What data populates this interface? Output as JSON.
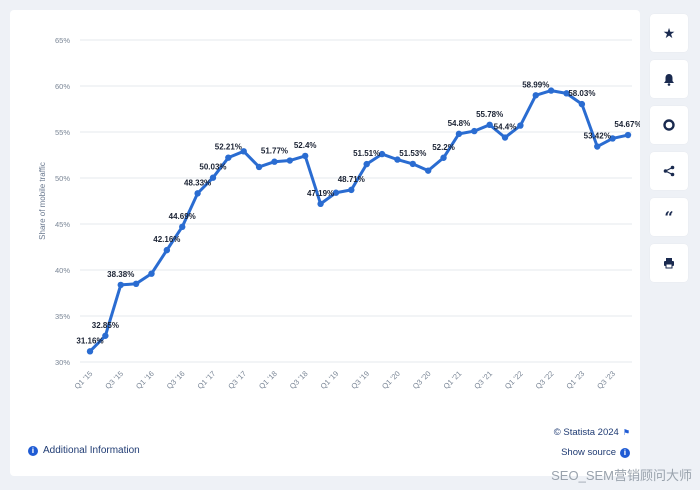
{
  "chart_data": {
    "type": "line",
    "ylabel": "Share of mobile traffic",
    "ylim": [
      30,
      65
    ],
    "y_ticks": [
      "30%",
      "35%",
      "40%",
      "45%",
      "50%",
      "55%",
      "60%",
      "65%"
    ],
    "y_tick_values": [
      30,
      35,
      40,
      45,
      50,
      55,
      60,
      65
    ],
    "x_tick_labels": [
      "Q1 '15",
      "Q3 '15",
      "Q1 '16",
      "Q3 '16",
      "Q1 '17",
      "Q3 '17",
      "Q1 '18",
      "Q3 '18",
      "Q1 '19",
      "Q3 '19",
      "Q1 '20",
      "Q3 '20",
      "Q1 '21",
      "Q3 '21",
      "Q1 '22",
      "Q3 '22",
      "Q1 '23",
      "Q3 '23"
    ],
    "categories": [
      "Q1 '15",
      "Q2 '15",
      "Q3 '15",
      "Q4 '15",
      "Q1 '16",
      "Q2 '16",
      "Q3 '16",
      "Q4 '16",
      "Q1 '17",
      "Q2 '17",
      "Q3 '17",
      "Q4 '17",
      "Q1 '18",
      "Q2 '18",
      "Q3 '18",
      "Q4 '18",
      "Q1 '19",
      "Q2 '19",
      "Q3 '19",
      "Q4 '19",
      "Q1 '20",
      "Q2 '20",
      "Q3 '20",
      "Q4 '20",
      "Q1 '21",
      "Q2 '21",
      "Q3 '21",
      "Q4 '21",
      "Q1 '22",
      "Q2 '22",
      "Q3 '22",
      "Q4 '22",
      "Q1 '23",
      "Q2 '23",
      "Q3 '23",
      "Q4 '23"
    ],
    "values": [
      31.16,
      32.85,
      38.38,
      38.5,
      39.6,
      42.16,
      44.69,
      48.33,
      50.03,
      52.21,
      52.9,
      51.2,
      51.77,
      51.9,
      52.4,
      47.19,
      48.4,
      48.71,
      51.51,
      52.6,
      52.0,
      51.53,
      50.8,
      52.2,
      54.8,
      55.1,
      55.78,
      54.4,
      55.7,
      58.99,
      59.5,
      59.2,
      58.03,
      53.42,
      54.3,
      54.67
    ],
    "data_labels": [
      {
        "index": 0,
        "text": "31.16%"
      },
      {
        "index": 1,
        "text": "32.85%"
      },
      {
        "index": 2,
        "text": "38.38%"
      },
      {
        "index": 5,
        "text": "42.16%"
      },
      {
        "index": 6,
        "text": "44.69%"
      },
      {
        "index": 7,
        "text": "48.33%"
      },
      {
        "index": 8,
        "text": "50.03%"
      },
      {
        "index": 9,
        "text": "52.21%"
      },
      {
        "index": 12,
        "text": "51.77%"
      },
      {
        "index": 14,
        "text": "52.4%"
      },
      {
        "index": 15,
        "text": "47.19%"
      },
      {
        "index": 17,
        "text": "48.71%"
      },
      {
        "index": 18,
        "text": "51.51%"
      },
      {
        "index": 21,
        "text": "51.53%"
      },
      {
        "index": 23,
        "text": "52.2%"
      },
      {
        "index": 24,
        "text": "54.8%"
      },
      {
        "index": 26,
        "text": "55.78%"
      },
      {
        "index": 27,
        "text": "54.4%"
      },
      {
        "index": 29,
        "text": "58.99%"
      },
      {
        "index": 32,
        "text": "58.03%"
      },
      {
        "index": 33,
        "text": "53.42%"
      },
      {
        "index": 35,
        "text": "54.67%"
      }
    ],
    "line_color": "#2a6cd1",
    "grid": true
  },
  "footer": {
    "additional_info": "Additional Information",
    "copyright": "© Statista 2024",
    "show_source": "Show source"
  },
  "toolbar": {
    "icons": [
      "star-icon",
      "bell-icon",
      "gear-icon",
      "share-icon",
      "quote-icon",
      "print-icon"
    ]
  },
  "watermark": "SEO_SEM营销顾问大师"
}
